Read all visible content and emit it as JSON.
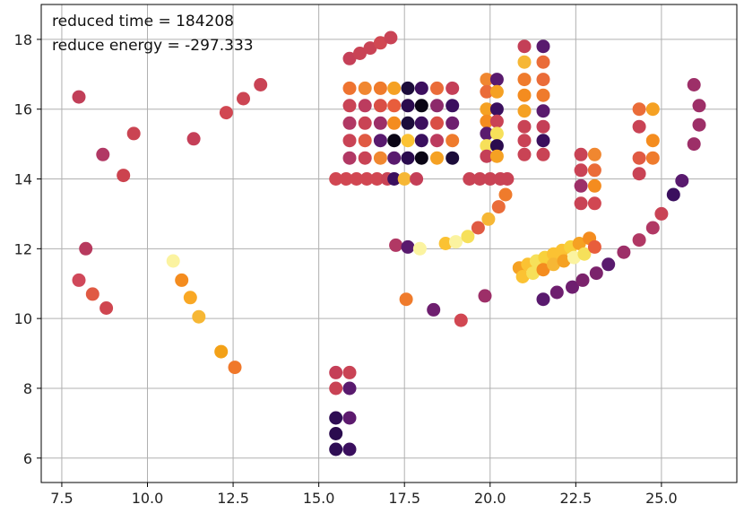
{
  "annotation": {
    "line1": "reduced time = 184208",
    "line2": "reduce energy = -297.333"
  },
  "chart_data": {
    "type": "scatter",
    "title": "",
    "xlabel": "",
    "ylabel": "",
    "xlim": [
      6.9,
      27.2
    ],
    "ylim": [
      5.3,
      19.0
    ],
    "x_ticks": [
      7.5,
      10.0,
      12.5,
      15.0,
      17.5,
      20.0,
      22.5,
      25.0
    ],
    "x_tick_labels": [
      "7.5",
      "10.0",
      "12.5",
      "15.0",
      "17.5",
      "20.0",
      "22.5",
      "25.0"
    ],
    "y_ticks": [
      6,
      8,
      10,
      12,
      14,
      16,
      18
    ],
    "y_tick_labels": [
      "6",
      "8",
      "10",
      "12",
      "14",
      "16",
      "18"
    ],
    "grid": true,
    "colormap": "inferno",
    "points": [
      [
        8.0,
        16.35,
        "#c13f58"
      ],
      [
        8.2,
        12.0,
        "#b73a5e"
      ],
      [
        8.0,
        11.1,
        "#d0485a"
      ],
      [
        8.4,
        10.7,
        "#e05a43"
      ],
      [
        8.8,
        10.3,
        "#cf4650"
      ],
      [
        8.7,
        14.7,
        "#b13864"
      ],
      [
        9.3,
        14.1,
        "#cc434f"
      ],
      [
        9.6,
        15.3,
        "#ca4452"
      ],
      [
        11.35,
        15.15,
        "#c53f58"
      ],
      [
        12.3,
        15.9,
        "#d14752"
      ],
      [
        12.8,
        16.3,
        "#cc4553"
      ],
      [
        13.3,
        16.7,
        "#c94355"
      ],
      [
        15.9,
        17.45,
        "#c54058"
      ],
      [
        16.2,
        17.6,
        "#c94355"
      ],
      [
        16.5,
        17.75,
        "#c94355"
      ],
      [
        16.8,
        17.9,
        "#d14852"
      ],
      [
        17.1,
        18.05,
        "#c94355"
      ],
      [
        10.75,
        11.65,
        "#fbf3a0"
      ],
      [
        11.0,
        11.1,
        "#f48c1f"
      ],
      [
        11.25,
        10.6,
        "#f9a825"
      ],
      [
        11.5,
        10.05,
        "#f6b735"
      ],
      [
        12.15,
        9.05,
        "#f3a117"
      ],
      [
        12.55,
        8.6,
        "#f0782a"
      ],
      [
        15.5,
        8.45,
        "#c53f58"
      ],
      [
        15.9,
        8.45,
        "#c94355"
      ],
      [
        15.5,
        8.0,
        "#c94355"
      ],
      [
        15.9,
        8.0,
        "#591a6e"
      ],
      [
        15.5,
        7.15,
        "#2e0d54"
      ],
      [
        15.9,
        7.15,
        "#5c1a6e"
      ],
      [
        15.5,
        6.7,
        "#2a0b4e"
      ],
      [
        15.5,
        6.25,
        "#2e0d54"
      ],
      [
        15.9,
        6.25,
        "#3a0f5e"
      ],
      [
        15.9,
        16.6,
        "#ee7330"
      ],
      [
        16.35,
        16.6,
        "#f08730"
      ],
      [
        16.8,
        16.6,
        "#ef7b2c"
      ],
      [
        17.2,
        16.6,
        "#f5a123"
      ],
      [
        17.6,
        16.6,
        "#1c0c3a"
      ],
      [
        18.0,
        16.6,
        "#3c0f5e"
      ],
      [
        18.45,
        16.6,
        "#ea6c39"
      ],
      [
        18.9,
        16.6,
        "#c43f57"
      ],
      [
        15.9,
        16.1,
        "#c94355"
      ],
      [
        16.35,
        16.1,
        "#bc3b5e"
      ],
      [
        16.8,
        16.1,
        "#d94f46"
      ],
      [
        17.2,
        16.1,
        "#e85d3c"
      ],
      [
        17.6,
        16.1,
        "#2a0b4e"
      ],
      [
        18.0,
        16.1,
        "#0a0515"
      ],
      [
        18.45,
        16.1,
        "#8c2a6a"
      ],
      [
        18.9,
        16.1,
        "#3a0f5e"
      ],
      [
        15.9,
        15.6,
        "#b13864"
      ],
      [
        16.35,
        15.6,
        "#c94355"
      ],
      [
        16.8,
        15.6,
        "#9d2f68"
      ],
      [
        17.2,
        15.6,
        "#f48c1f"
      ],
      [
        17.6,
        15.6,
        "#1c0c3a"
      ],
      [
        18.0,
        15.6,
        "#3c0f5e"
      ],
      [
        18.45,
        15.6,
        "#d94f46"
      ],
      [
        18.9,
        15.6,
        "#6e1f6f"
      ],
      [
        15.9,
        15.1,
        "#c94355"
      ],
      [
        16.35,
        15.1,
        "#e05a43"
      ],
      [
        16.8,
        15.1,
        "#591a6e"
      ],
      [
        17.2,
        15.1,
        "#0a0515"
      ],
      [
        17.6,
        15.1,
        "#fbc233"
      ],
      [
        18.0,
        15.1,
        "#3a0f5e"
      ],
      [
        18.45,
        15.1,
        "#bc3b5e"
      ],
      [
        18.9,
        15.1,
        "#ef7b2c"
      ],
      [
        15.9,
        14.6,
        "#b13864"
      ],
      [
        16.35,
        14.6,
        "#c94355"
      ],
      [
        16.8,
        14.6,
        "#f08730"
      ],
      [
        17.2,
        14.6,
        "#591a6e"
      ],
      [
        17.6,
        14.6,
        "#2a0b4e"
      ],
      [
        18.0,
        14.6,
        "#0a0515"
      ],
      [
        18.45,
        14.6,
        "#f5a123"
      ],
      [
        18.9,
        14.6,
        "#1c0c3a"
      ],
      [
        15.5,
        14.0,
        "#d14752"
      ],
      [
        15.8,
        14.0,
        "#d14752"
      ],
      [
        16.1,
        14.0,
        "#d14752"
      ],
      [
        16.4,
        14.0,
        "#d14752"
      ],
      [
        16.7,
        14.0,
        "#d14752"
      ],
      [
        17.0,
        14.0,
        "#c94355"
      ],
      [
        17.2,
        14.0,
        "#3a0f5e"
      ],
      [
        17.5,
        14.0,
        "#f6b735"
      ],
      [
        17.85,
        14.0,
        "#c43f57"
      ],
      [
        19.4,
        14.0,
        "#c94355"
      ],
      [
        19.7,
        14.0,
        "#c94355"
      ],
      [
        20.0,
        14.0,
        "#c94355"
      ],
      [
        20.3,
        14.0,
        "#c94355"
      ],
      [
        20.5,
        14.0,
        "#c94355"
      ],
      [
        19.9,
        16.85,
        "#f08730"
      ],
      [
        20.2,
        16.85,
        "#591a6e"
      ],
      [
        19.9,
        16.5,
        "#ea6c39"
      ],
      [
        20.2,
        16.5,
        "#f5a123"
      ],
      [
        19.9,
        16.0,
        "#f5a123"
      ],
      [
        20.2,
        16.0,
        "#3a0f5e"
      ],
      [
        19.9,
        15.65,
        "#f48c1f"
      ],
      [
        20.2,
        15.65,
        "#c94355"
      ],
      [
        19.9,
        15.3,
        "#591a6e"
      ],
      [
        20.2,
        15.3,
        "#f6e05a"
      ],
      [
        19.9,
        14.95,
        "#f6e05a"
      ],
      [
        20.2,
        14.95,
        "#2a0b4e"
      ],
      [
        19.9,
        14.65,
        "#c43f57"
      ],
      [
        20.2,
        14.65,
        "#f5a123"
      ],
      [
        21.0,
        17.8,
        "#c43f57"
      ],
      [
        21.55,
        17.8,
        "#591a6e"
      ],
      [
        21.0,
        17.35,
        "#f6b735"
      ],
      [
        21.55,
        17.35,
        "#ea6c39"
      ],
      [
        21.0,
        16.85,
        "#ef7b2c"
      ],
      [
        21.55,
        16.85,
        "#ea6c39"
      ],
      [
        21.0,
        16.4,
        "#f48c1f"
      ],
      [
        21.55,
        16.4,
        "#ef7b2c"
      ],
      [
        21.0,
        15.95,
        "#f5a123"
      ],
      [
        21.55,
        15.95,
        "#591a6e"
      ],
      [
        21.0,
        15.5,
        "#c94355"
      ],
      [
        21.55,
        15.5,
        "#c43f57"
      ],
      [
        21.0,
        15.1,
        "#c94355"
      ],
      [
        21.55,
        15.1,
        "#3a0f5e"
      ],
      [
        21.0,
        14.7,
        "#c94355"
      ],
      [
        21.55,
        14.7,
        "#c94355"
      ],
      [
        22.65,
        14.7,
        "#c94355"
      ],
      [
        23.05,
        14.7,
        "#f08730"
      ],
      [
        22.65,
        14.25,
        "#c94355"
      ],
      [
        23.05,
        14.25,
        "#ea6c39"
      ],
      [
        22.65,
        13.8,
        "#9d2f68"
      ],
      [
        23.05,
        13.8,
        "#f48c1f"
      ],
      [
        22.65,
        13.3,
        "#c94355"
      ],
      [
        23.05,
        13.3,
        "#d14752"
      ],
      [
        24.35,
        16.0,
        "#ea6c39"
      ],
      [
        24.75,
        16.0,
        "#f5a123"
      ],
      [
        24.35,
        15.5,
        "#c94355"
      ],
      [
        24.75,
        15.1,
        "#f48c1f"
      ],
      [
        24.35,
        14.6,
        "#e05a43"
      ],
      [
        24.75,
        14.6,
        "#ef7b2c"
      ],
      [
        24.35,
        14.15,
        "#c94355"
      ],
      [
        17.25,
        12.1,
        "#b13864"
      ],
      [
        17.6,
        12.05,
        "#591a6e"
      ],
      [
        17.95,
        12.0,
        "#fbf3a0"
      ],
      [
        18.7,
        12.15,
        "#fbc233"
      ],
      [
        19.0,
        12.2,
        "#fbf3a0"
      ],
      [
        19.35,
        12.35,
        "#f6e05a"
      ],
      [
        19.65,
        12.6,
        "#e05a43"
      ],
      [
        19.95,
        12.85,
        "#f6b735"
      ],
      [
        20.25,
        13.2,
        "#ea6c39"
      ],
      [
        20.45,
        13.55,
        "#ef7b2c"
      ],
      [
        17.55,
        10.55,
        "#ef7b2c"
      ],
      [
        18.35,
        10.25,
        "#6e1f6f"
      ],
      [
        19.15,
        9.95,
        "#d14752"
      ],
      [
        19.85,
        10.65,
        "#9d2f68"
      ],
      [
        20.85,
        11.45,
        "#f5a123"
      ],
      [
        21.1,
        11.55,
        "#fbc233"
      ],
      [
        21.35,
        11.65,
        "#f6e05a"
      ],
      [
        21.6,
        11.75,
        "#f8d13b"
      ],
      [
        21.85,
        11.85,
        "#fbc233"
      ],
      [
        22.1,
        11.95,
        "#fbc233"
      ],
      [
        22.35,
        12.05,
        "#f8d13b"
      ],
      [
        22.6,
        12.15,
        "#f5a123"
      ],
      [
        22.9,
        12.3,
        "#f48c1f"
      ],
      [
        20.95,
        11.2,
        "#fbc233"
      ],
      [
        21.25,
        11.3,
        "#f6e05a"
      ],
      [
        21.55,
        11.4,
        "#f48c1f"
      ],
      [
        21.85,
        11.55,
        "#f6b735"
      ],
      [
        22.15,
        11.65,
        "#f5a123"
      ],
      [
        22.45,
        11.75,
        "#fbf3a0"
      ],
      [
        22.75,
        11.85,
        "#f6e05a"
      ],
      [
        23.05,
        12.05,
        "#e85d3c"
      ],
      [
        21.55,
        10.55,
        "#591a6e"
      ],
      [
        21.95,
        10.75,
        "#6e1f6f"
      ],
      [
        22.4,
        10.9,
        "#6e1f6f"
      ],
      [
        22.7,
        11.1,
        "#7b236c"
      ],
      [
        23.1,
        11.3,
        "#7b236c"
      ],
      [
        23.45,
        11.55,
        "#591a6e"
      ],
      [
        23.9,
        11.9,
        "#9d2f68"
      ],
      [
        24.35,
        12.25,
        "#b13864"
      ],
      [
        24.75,
        12.6,
        "#b13864"
      ],
      [
        25.0,
        13.0,
        "#c94355"
      ],
      [
        25.35,
        13.55,
        "#3a0f5e"
      ],
      [
        25.6,
        13.95,
        "#591a6e"
      ],
      [
        25.95,
        15.0,
        "#9d2f68"
      ],
      [
        26.1,
        15.55,
        "#9d2f68"
      ],
      [
        26.1,
        16.1,
        "#9d2f68"
      ],
      [
        25.95,
        16.7,
        "#9d2f68"
      ]
    ]
  }
}
